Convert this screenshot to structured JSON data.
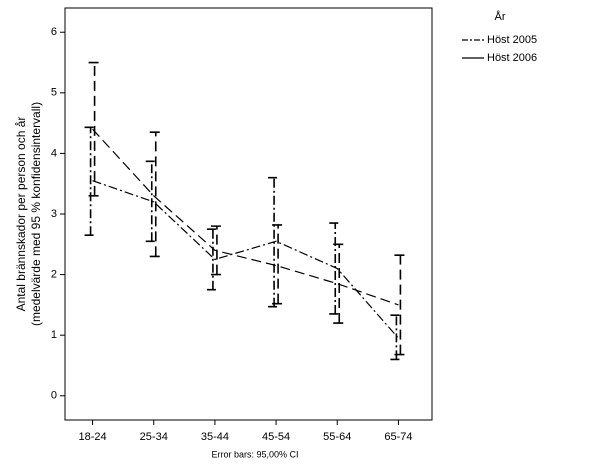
{
  "chart_data": {
    "type": "line",
    "y_label_lines": [
      "Antal brännskador per person och år",
      "(medelvärde med 95 % konfidensintervall)"
    ],
    "footnote": "Error bars: 95,00% CI",
    "legend_title": "År",
    "categories": [
      "18-24",
      "25-34",
      "35-44",
      "45-54",
      "55-64",
      "65-74"
    ],
    "series": [
      {
        "name": "Höst 2005",
        "color": "#000000",
        "dash": "9,3,2,3",
        "values": [
          3.55,
          3.2,
          2.25,
          2.55,
          2.1,
          0.95
        ],
        "lower": [
          2.65,
          2.55,
          1.75,
          1.47,
          1.35,
          0.6
        ],
        "upper": [
          4.43,
          3.87,
          2.75,
          3.6,
          2.85,
          1.33
        ]
      },
      {
        "name": "Höst 2006",
        "color": "#000000",
        "dash": "10,5",
        "values": [
          4.4,
          3.3,
          2.4,
          2.15,
          1.85,
          1.5
        ],
        "lower": [
          3.3,
          2.3,
          2.0,
          1.52,
          1.2,
          0.68
        ],
        "upper": [
          5.5,
          4.35,
          2.8,
          2.82,
          2.5,
          2.32
        ]
      }
    ],
    "ylim": [
      -0.4,
      6.4
    ],
    "yticks": [
      0,
      1,
      2,
      3,
      4,
      5,
      6
    ]
  }
}
